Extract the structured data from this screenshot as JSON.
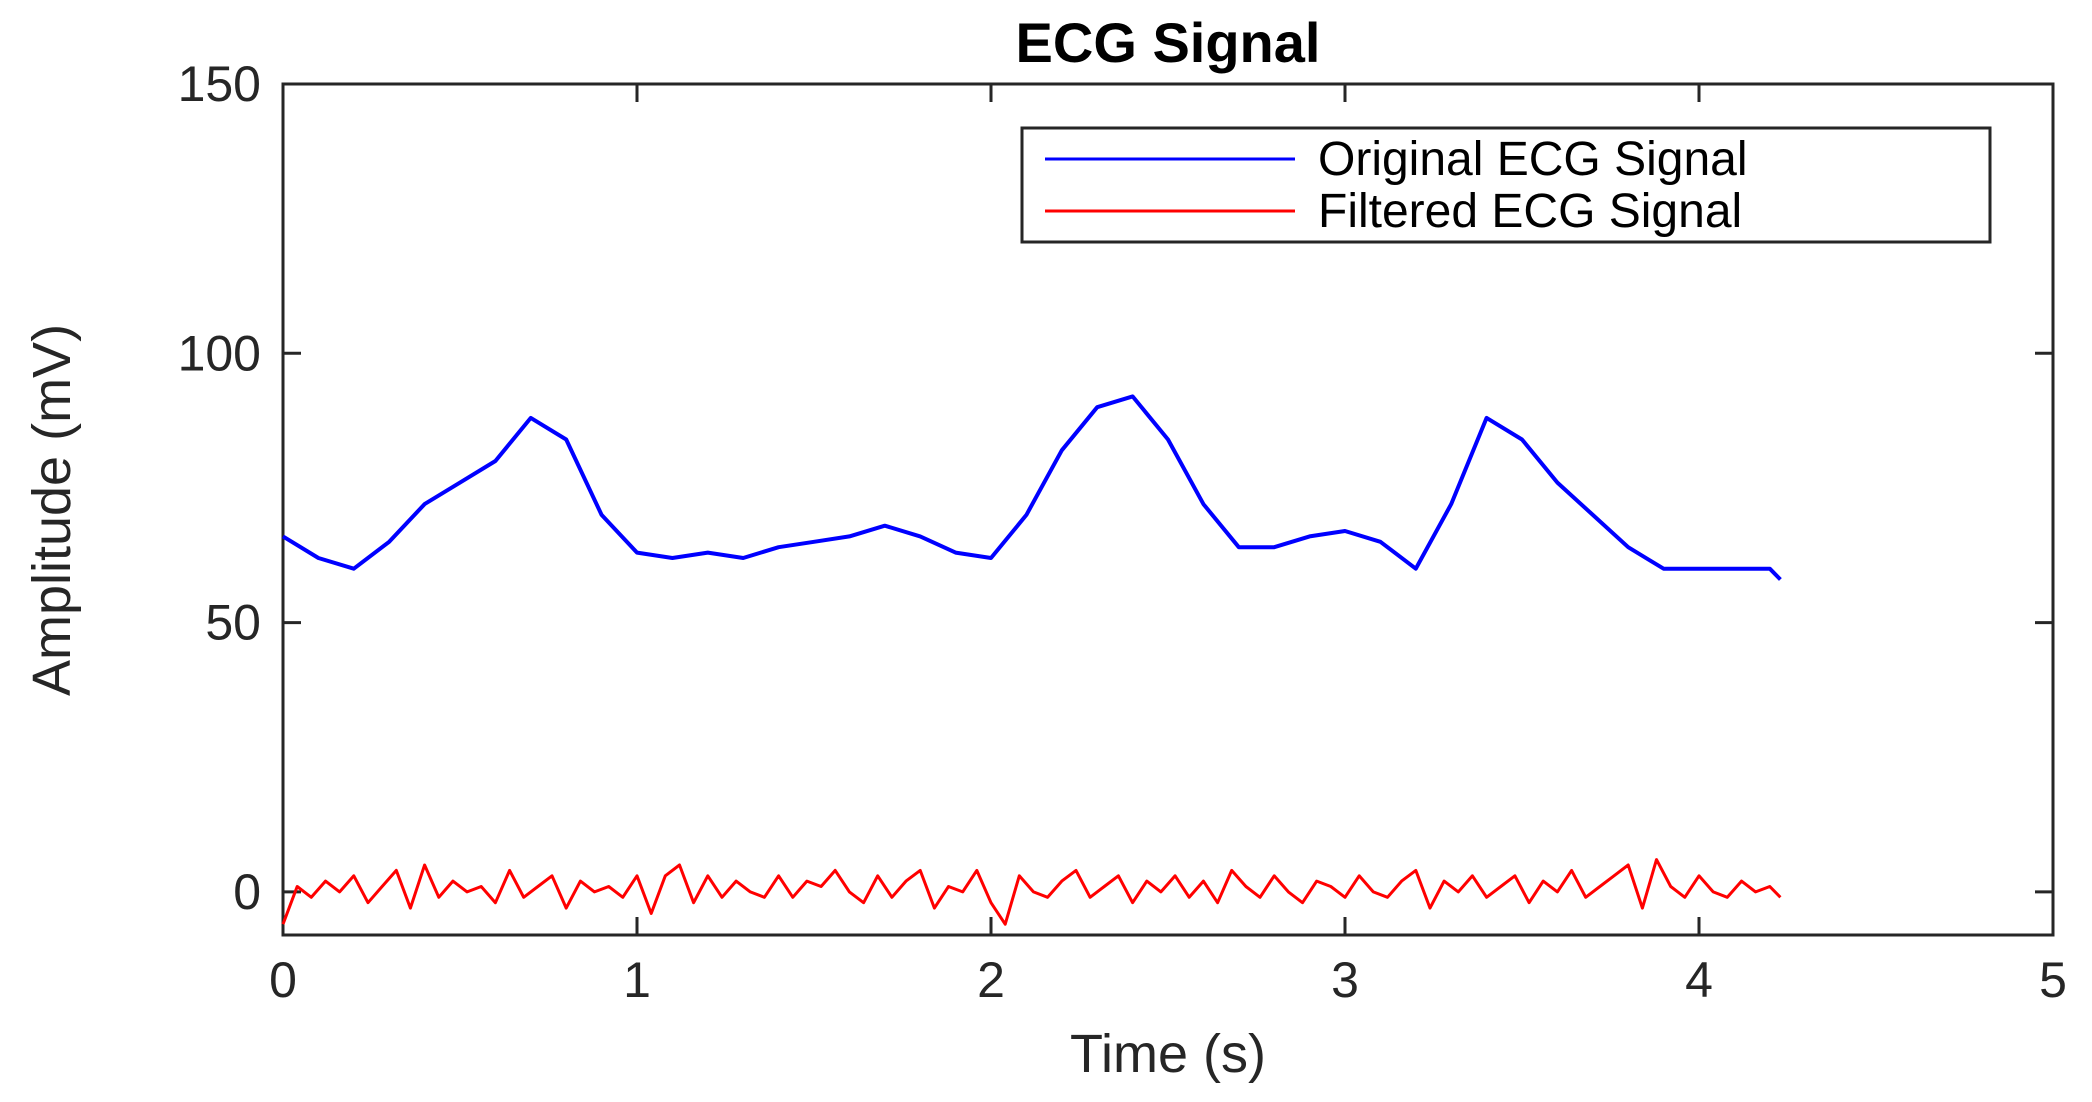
{
  "chart_data": {
    "type": "line",
    "title": "ECG Signal",
    "xlabel": "Time (s)",
    "ylabel": "Amplitude (mV)",
    "xlim": [
      0,
      5
    ],
    "ylim": [
      -8,
      150
    ],
    "xticks": [
      0,
      1,
      2,
      3,
      4,
      5
    ],
    "yticks": [
      0,
      50,
      100,
      150
    ],
    "xtick_labels": [
      "0",
      "1",
      "2",
      "3",
      "4",
      "5"
    ],
    "ytick_labels": [
      "0",
      "50",
      "100",
      "150"
    ],
    "grid": false,
    "legend_position": "top-right",
    "series": [
      {
        "name": "Original ECG Signal",
        "color": "#0000ff",
        "x": [
          0,
          0.1,
          0.2,
          0.3,
          0.4,
          0.5,
          0.6,
          0.7,
          0.8,
          0.9,
          1.0,
          1.1,
          1.2,
          1.3,
          1.4,
          1.5,
          1.6,
          1.7,
          1.8,
          1.9,
          2.0,
          2.1,
          2.2,
          2.3,
          2.4,
          2.5,
          2.6,
          2.7,
          2.8,
          2.9,
          3.0,
          3.1,
          3.2,
          3.3,
          3.4,
          3.5,
          3.6,
          3.7,
          3.8,
          3.9,
          4.0,
          4.1,
          4.2,
          4.23
        ],
        "y": [
          66,
          62,
          60,
          65,
          72,
          76,
          80,
          88,
          84,
          70,
          63,
          62,
          63,
          62,
          64,
          65,
          66,
          68,
          66,
          63,
          62,
          70,
          82,
          90,
          92,
          84,
          72,
          64,
          64,
          66,
          67,
          65,
          60,
          72,
          88,
          84,
          76,
          70,
          64,
          60,
          60,
          60,
          60,
          58
        ]
      },
      {
        "name": "Filtered ECG Signal",
        "color": "#ff0000",
        "x": [
          0,
          0.04,
          0.08,
          0.12,
          0.16,
          0.2,
          0.24,
          0.28,
          0.32,
          0.36,
          0.4,
          0.44,
          0.48,
          0.52,
          0.56,
          0.6,
          0.64,
          0.68,
          0.72,
          0.76,
          0.8,
          0.84,
          0.88,
          0.92,
          0.96,
          1.0,
          1.04,
          1.08,
          1.12,
          1.16,
          1.2,
          1.24,
          1.28,
          1.32,
          1.36,
          1.4,
          1.44,
          1.48,
          1.52,
          1.56,
          1.6,
          1.64,
          1.68,
          1.72,
          1.76,
          1.8,
          1.84,
          1.88,
          1.92,
          1.96,
          2.0,
          2.04,
          2.08,
          2.12,
          2.16,
          2.2,
          2.24,
          2.28,
          2.32,
          2.36,
          2.4,
          2.44,
          2.48,
          2.52,
          2.56,
          2.6,
          2.64,
          2.68,
          2.72,
          2.76,
          2.8,
          2.84,
          2.88,
          2.92,
          2.96,
          3.0,
          3.04,
          3.08,
          3.12,
          3.16,
          3.2,
          3.24,
          3.28,
          3.32,
          3.36,
          3.4,
          3.44,
          3.48,
          3.52,
          3.56,
          3.6,
          3.64,
          3.68,
          3.72,
          3.76,
          3.8,
          3.84,
          3.88,
          3.92,
          3.96,
          4.0,
          4.04,
          4.08,
          4.12,
          4.16,
          4.2,
          4.23
        ],
        "y": [
          -6,
          1,
          -1,
          2,
          0,
          3,
          -2,
          1,
          4,
          -3,
          5,
          -1,
          2,
          0,
          1,
          -2,
          4,
          -1,
          1,
          3,
          -3,
          2,
          0,
          1,
          -1,
          3,
          -4,
          3,
          5,
          -2,
          3,
          -1,
          2,
          0,
          -1,
          3,
          -1,
          2,
          1,
          4,
          0,
          -2,
          3,
          -1,
          2,
          4,
          -3,
          1,
          0,
          4,
          -2,
          -6,
          3,
          0,
          -1,
          2,
          4,
          -1,
          1,
          3,
          -2,
          2,
          0,
          3,
          -1,
          2,
          -2,
          4,
          1,
          -1,
          3,
          0,
          -2,
          2,
          1,
          -1,
          3,
          0,
          -1,
          2,
          4,
          -3,
          2,
          0,
          3,
          -1,
          1,
          3,
          -2,
          2,
          0,
          4,
          -1,
          1,
          3,
          5,
          -3,
          6,
          1,
          -1,
          3,
          0,
          -1,
          2,
          0,
          1,
          -1
        ]
      }
    ]
  }
}
